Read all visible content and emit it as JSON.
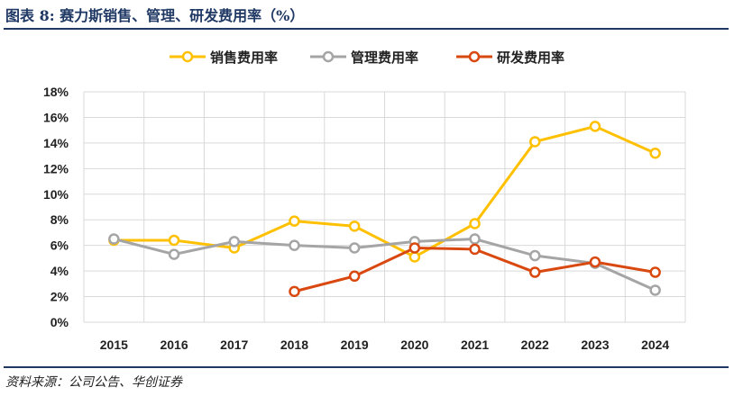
{
  "title": "图表 8: 赛力斯销售、管理、研发费用率（%）",
  "source": "资料来源：公司公告、华创证券",
  "chart_data": {
    "type": "line",
    "title": "赛力斯销售、管理、研发费用率（%）",
    "xlabel": "",
    "ylabel": "",
    "categories": [
      "2015",
      "2016",
      "2017",
      "2018",
      "2019",
      "2020",
      "2021",
      "2022",
      "2023",
      "2024"
    ],
    "yticks": [
      "0%",
      "2%",
      "4%",
      "6%",
      "8%",
      "10%",
      "12%",
      "14%",
      "16%",
      "18%"
    ],
    "ylim": [
      0,
      18
    ],
    "grid": true,
    "legend_position": "top-center",
    "series": [
      {
        "name": "销售费用率",
        "color": "#FFC000",
        "values": [
          6.4,
          6.4,
          5.8,
          7.9,
          7.5,
          5.1,
          7.7,
          14.1,
          15.3,
          13.2
        ]
      },
      {
        "name": "管理费用率",
        "color": "#A5A5A5",
        "values": [
          6.5,
          5.3,
          6.3,
          6.0,
          5.8,
          6.3,
          6.5,
          5.2,
          4.6,
          2.5
        ]
      },
      {
        "name": "研发费用率",
        "color": "#D9480F",
        "values": [
          null,
          null,
          null,
          2.4,
          3.6,
          5.8,
          5.7,
          3.9,
          4.7,
          3.9
        ]
      }
    ]
  }
}
